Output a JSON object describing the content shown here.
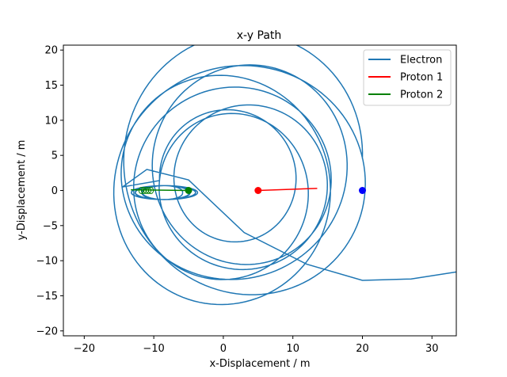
{
  "chart_data": {
    "type": "line",
    "title": "x-y Path",
    "xlabel": "x-Displacement / m",
    "ylabel": "y-Displacement / m",
    "xlim": [
      -23,
      33.5
    ],
    "ylim": [
      -20.7,
      20.7
    ],
    "xticks": [
      -20,
      -10,
      0,
      10,
      20,
      30
    ],
    "yticks": [
      -20,
      -15,
      -10,
      -5,
      0,
      5,
      10,
      15,
      20
    ],
    "grid": false,
    "legend": {
      "position": "top-right",
      "entries": [
        "Electron",
        "Proton 1",
        "Proton 2"
      ]
    },
    "series": [
      {
        "name": "Electron",
        "color": "#1f77b4",
        "start_point": [
          20,
          0
        ],
        "path_spiral": {
          "cx_start": 1.5,
          "cy_start": 2.5,
          "r_start": 18.5,
          "cx_end": 2.0,
          "cy_end": 0.5,
          "r_end": 9.0,
          "turns": 7.5
        },
        "path_tail": [
          [
            -14.5,
            0.5
          ],
          [
            -11.0,
            3.0
          ],
          [
            -5.0,
            1.5
          ],
          [
            3.0,
            -6.0
          ],
          [
            12.0,
            -10.5
          ],
          [
            20.0,
            -12.8
          ],
          [
            27.0,
            -12.6
          ],
          [
            33.5,
            -11.6
          ]
        ]
      },
      {
        "name": "Proton 1",
        "color": "#ff0000",
        "x": [
          5,
          13.5
        ],
        "y": [
          0,
          0.3
        ],
        "start_point": [
          5,
          0
        ]
      },
      {
        "name": "Proton 2",
        "color": "#008000",
        "x": [
          -5,
          -13.3
        ],
        "y": [
          0,
          0.1
        ],
        "start_point": [
          -5,
          0
        ],
        "loop_center": [
          -8.5,
          0
        ],
        "loop_extent": [
          4.8,
          1.8
        ]
      }
    ]
  }
}
